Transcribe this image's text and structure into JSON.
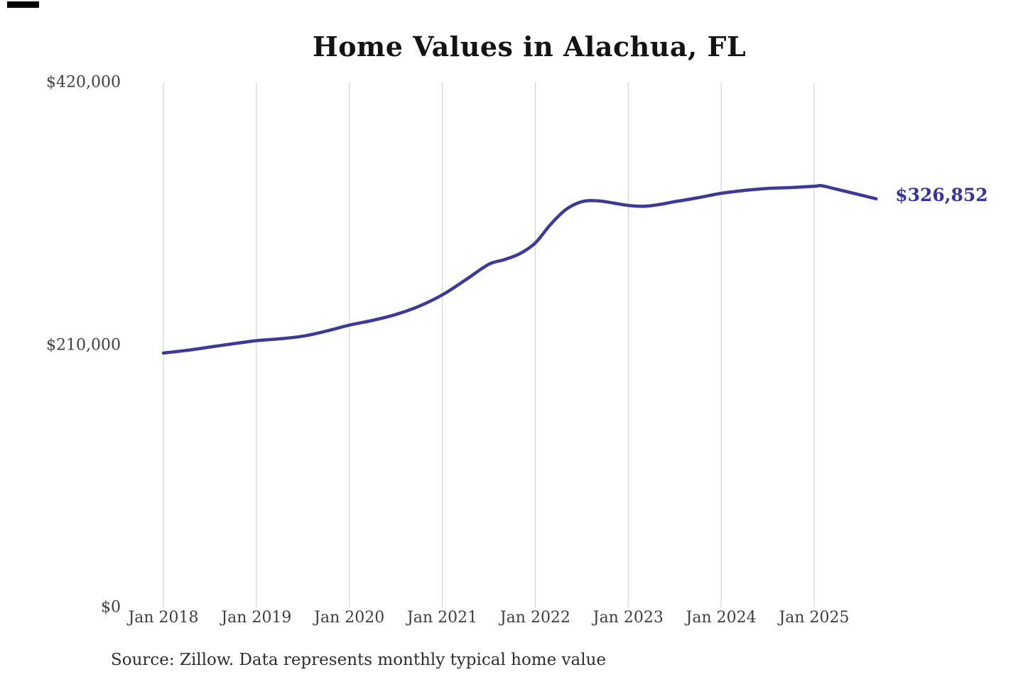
{
  "page": {
    "background": "#ffffff"
  },
  "chart_data": {
    "type": "line",
    "title": "Home Values in Alachua, FL",
    "source_note": "Source: Zillow. Data represents monthly typical home value",
    "end_label": "$326,852",
    "line_color": "#3b3a98",
    "end_label_color": "#37329c",
    "grid_color": "#cccccc",
    "grid": "vertical-only",
    "legend_position": "none",
    "xlabel": "",
    "ylabel": "",
    "ylim": [
      0,
      420000
    ],
    "y_ticks": [
      {
        "value": 0,
        "label": "$0"
      },
      {
        "value": 210000,
        "label": "$210,000"
      },
      {
        "value": 420000,
        "label": "$420,000"
      }
    ],
    "x_ticks": [
      {
        "date": "2018-01",
        "label": "Jan 2018"
      },
      {
        "date": "2019-01",
        "label": "Jan 2019"
      },
      {
        "date": "2020-01",
        "label": "Jan 2020"
      },
      {
        "date": "2021-01",
        "label": "Jan 2021"
      },
      {
        "date": "2022-01",
        "label": "Jan 2022"
      },
      {
        "date": "2023-01",
        "label": "Jan 2023"
      },
      {
        "date": "2024-01",
        "label": "Jan 2024"
      },
      {
        "date": "2025-01",
        "label": "Jan 2025"
      }
    ],
    "series": [
      {
        "name": "Monthly typical home value",
        "points": [
          {
            "date": "2018-01",
            "value": 203500
          },
          {
            "date": "2018-04",
            "value": 205600
          },
          {
            "date": "2018-07",
            "value": 208300
          },
          {
            "date": "2018-10",
            "value": 210900
          },
          {
            "date": "2019-01",
            "value": 213400
          },
          {
            "date": "2019-04",
            "value": 214900
          },
          {
            "date": "2019-07",
            "value": 217000
          },
          {
            "date": "2019-10",
            "value": 221000
          },
          {
            "date": "2020-01",
            "value": 225800
          },
          {
            "date": "2020-04",
            "value": 229600
          },
          {
            "date": "2020-07",
            "value": 234300
          },
          {
            "date": "2020-10",
            "value": 240900
          },
          {
            "date": "2021-01",
            "value": 250000
          },
          {
            "date": "2021-04",
            "value": 262000
          },
          {
            "date": "2021-07",
            "value": 274500
          },
          {
            "date": "2021-09",
            "value": 278200
          },
          {
            "date": "2021-11",
            "value": 283000
          },
          {
            "date": "2022-01",
            "value": 291500
          },
          {
            "date": "2022-03",
            "value": 306500
          },
          {
            "date": "2022-05",
            "value": 318500
          },
          {
            "date": "2022-07",
            "value": 324600
          },
          {
            "date": "2022-09",
            "value": 325300
          },
          {
            "date": "2022-11",
            "value": 323600
          },
          {
            "date": "2023-01",
            "value": 321600
          },
          {
            "date": "2023-03",
            "value": 320900
          },
          {
            "date": "2023-05",
            "value": 322300
          },
          {
            "date": "2023-07",
            "value": 324600
          },
          {
            "date": "2023-10",
            "value": 327700
          },
          {
            "date": "2024-01",
            "value": 331300
          },
          {
            "date": "2024-04",
            "value": 333600
          },
          {
            "date": "2024-07",
            "value": 335200
          },
          {
            "date": "2024-10",
            "value": 335900
          },
          {
            "date": "2025-01",
            "value": 336900
          },
          {
            "date": "2025-02",
            "value": 337300
          },
          {
            "date": "2025-04",
            "value": 334400
          },
          {
            "date": "2025-07",
            "value": 330000
          },
          {
            "date": "2025-09",
            "value": 326852
          }
        ]
      }
    ]
  }
}
